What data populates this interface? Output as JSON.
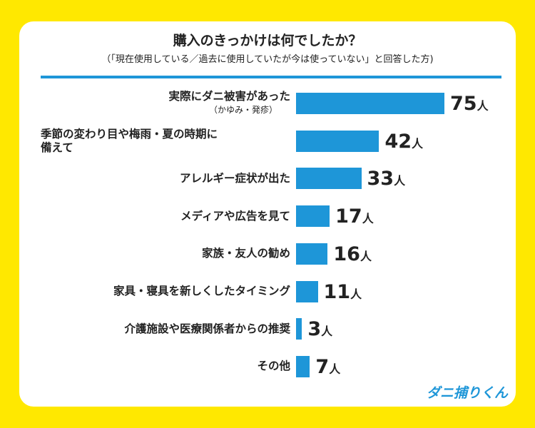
{
  "chart_data": {
    "type": "bar",
    "orientation": "horizontal",
    "title": "購入のきっかけは何でしたか？",
    "subtitle": "（「現在使用している／過去に使用していたが今は使っていない」と回答した方)",
    "categories": [
      {
        "label": "実際にダニ被害があった",
        "sub": "（かゆみ・発疹）"
      },
      {
        "label": "季節の変わり目や梅雨・夏の時期に備えて",
        "sub": ""
      },
      {
        "label": "アレルギー症状が出た",
        "sub": ""
      },
      {
        "label": "メディアや広告を見て",
        "sub": ""
      },
      {
        "label": "家族・友人の勧め",
        "sub": ""
      },
      {
        "label": "家具・寝具を新しくしたタイミング",
        "sub": ""
      },
      {
        "label": "介護施設や医療関係者からの推奨",
        "sub": ""
      },
      {
        "label": "その他",
        "sub": ""
      }
    ],
    "values": [
      75,
      42,
      33,
      17,
      16,
      11,
      3,
      7
    ],
    "unit": "人",
    "bar_color": "#1e96d8",
    "background_color": "#ffe800"
  },
  "logo": "ダニ捕りくん"
}
